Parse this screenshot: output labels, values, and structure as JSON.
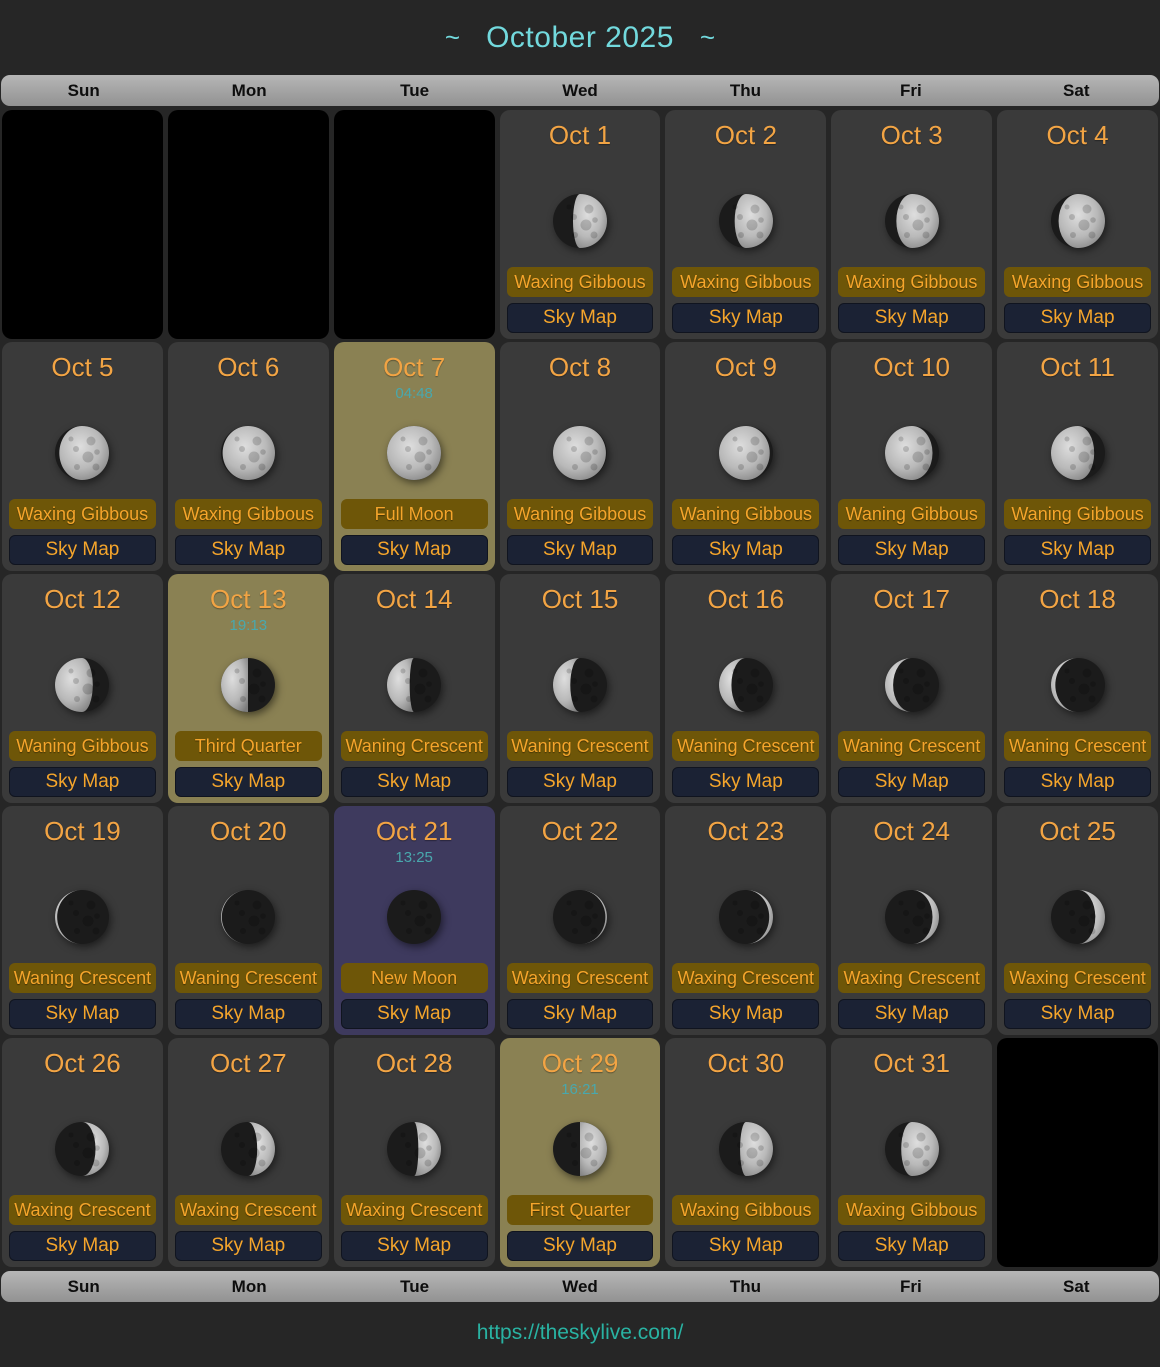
{
  "title": {
    "tilde": "~",
    "month": "October 2025"
  },
  "weekdays": [
    "Sun",
    "Mon",
    "Tue",
    "Wed",
    "Thu",
    "Fri",
    "Sat"
  ],
  "sky_map_label": "Sky Map",
  "footer_url": "https://theskylive.com/",
  "colors": {
    "page_bg": "#262626",
    "cell_bg": "#3a3a3a",
    "empty_cell_bg": "#000000",
    "full_quarter_highlight": "#8a8153",
    "new_moon_highlight": "#3e3a5e",
    "date_orange": "#f2a444",
    "button_orange_text": "#f5a52b",
    "phase_button_bg": "#6e5608",
    "skymap_button_bg": "#1b2234",
    "time_teal": "#49a8ad",
    "title_teal": "#72d9dd",
    "url_teal": "#29b2a2",
    "weekday_bar_gray": "#a8a8a8"
  },
  "cells": [
    {
      "empty": true
    },
    {
      "empty": true
    },
    {
      "empty": true
    },
    {
      "date": "Oct 1",
      "time": "",
      "phase": "Waxing Gibbous",
      "highlight": "",
      "moon": {
        "illum": 0.63,
        "lit": "right"
      }
    },
    {
      "date": "Oct 2",
      "time": "",
      "phase": "Waxing Gibbous",
      "highlight": "",
      "moon": {
        "illum": 0.71,
        "lit": "right"
      }
    },
    {
      "date": "Oct 3",
      "time": "",
      "phase": "Waxing Gibbous",
      "highlight": "",
      "moon": {
        "illum": 0.79,
        "lit": "right"
      }
    },
    {
      "date": "Oct 4",
      "time": "",
      "phase": "Waxing Gibbous",
      "highlight": "",
      "moon": {
        "illum": 0.86,
        "lit": "right"
      }
    },
    {
      "date": "Oct 5",
      "time": "",
      "phase": "Waxing Gibbous",
      "highlight": "",
      "moon": {
        "illum": 0.92,
        "lit": "right"
      }
    },
    {
      "date": "Oct 6",
      "time": "",
      "phase": "Waxing Gibbous",
      "highlight": "",
      "moon": {
        "illum": 0.97,
        "lit": "right"
      }
    },
    {
      "date": "Oct 7",
      "time": "04:48",
      "phase": "Full Moon",
      "highlight": "olive",
      "moon": {
        "illum": 1.0,
        "lit": "right"
      }
    },
    {
      "date": "Oct 8",
      "time": "",
      "phase": "Waning Gibbous",
      "highlight": "",
      "moon": {
        "illum": 0.98,
        "lit": "left"
      }
    },
    {
      "date": "Oct 9",
      "time": "",
      "phase": "Waning Gibbous",
      "highlight": "",
      "moon": {
        "illum": 0.94,
        "lit": "left"
      }
    },
    {
      "date": "Oct 10",
      "time": "",
      "phase": "Waning Gibbous",
      "highlight": "",
      "moon": {
        "illum": 0.88,
        "lit": "left"
      }
    },
    {
      "date": "Oct 11",
      "time": "",
      "phase": "Waning Gibbous",
      "highlight": "",
      "moon": {
        "illum": 0.8,
        "lit": "left"
      }
    },
    {
      "date": "Oct 12",
      "time": "",
      "phase": "Waning Gibbous",
      "highlight": "",
      "moon": {
        "illum": 0.7,
        "lit": "left"
      }
    },
    {
      "date": "Oct 13",
      "time": "19:13",
      "phase": "Third Quarter",
      "highlight": "olive",
      "moon": {
        "illum": 0.5,
        "lit": "left"
      }
    },
    {
      "date": "Oct 14",
      "time": "",
      "phase": "Waning Crescent",
      "highlight": "",
      "moon": {
        "illum": 0.42,
        "lit": "left"
      }
    },
    {
      "date": "Oct 15",
      "time": "",
      "phase": "Waning Crescent",
      "highlight": "",
      "moon": {
        "illum": 0.32,
        "lit": "left"
      }
    },
    {
      "date": "Oct 16",
      "time": "",
      "phase": "Waning Crescent",
      "highlight": "",
      "moon": {
        "illum": 0.23,
        "lit": "left"
      }
    },
    {
      "date": "Oct 17",
      "time": "",
      "phase": "Waning Crescent",
      "highlight": "",
      "moon": {
        "illum": 0.15,
        "lit": "left"
      }
    },
    {
      "date": "Oct 18",
      "time": "",
      "phase": "Waning Crescent",
      "highlight": "",
      "moon": {
        "illum": 0.08,
        "lit": "left"
      }
    },
    {
      "date": "Oct 19",
      "time": "",
      "phase": "Waning Crescent",
      "highlight": "",
      "moon": {
        "illum": 0.04,
        "lit": "left"
      }
    },
    {
      "date": "Oct 20",
      "time": "",
      "phase": "Waning Crescent",
      "highlight": "",
      "moon": {
        "illum": 0.015,
        "lit": "left"
      }
    },
    {
      "date": "Oct 21",
      "time": "13:25",
      "phase": "New Moon",
      "highlight": "indigo",
      "moon": {
        "illum": 0.0,
        "lit": "right"
      }
    },
    {
      "date": "Oct 22",
      "time": "",
      "phase": "Waxing Crescent",
      "highlight": "",
      "moon": {
        "illum": 0.03,
        "lit": "right"
      }
    },
    {
      "date": "Oct 23",
      "time": "",
      "phase": "Waxing Crescent",
      "highlight": "",
      "moon": {
        "illum": 0.07,
        "lit": "right"
      }
    },
    {
      "date": "Oct 24",
      "time": "",
      "phase": "Waxing Crescent",
      "highlight": "",
      "moon": {
        "illum": 0.12,
        "lit": "right"
      }
    },
    {
      "date": "Oct 25",
      "time": "",
      "phase": "Waxing Crescent",
      "highlight": "",
      "moon": {
        "illum": 0.18,
        "lit": "right"
      }
    },
    {
      "date": "Oct 26",
      "time": "",
      "phase": "Waxing Crescent",
      "highlight": "",
      "moon": {
        "illum": 0.25,
        "lit": "right"
      }
    },
    {
      "date": "Oct 27",
      "time": "",
      "phase": "Waxing Crescent",
      "highlight": "",
      "moon": {
        "illum": 0.33,
        "lit": "right"
      }
    },
    {
      "date": "Oct 28",
      "time": "",
      "phase": "Waxing Crescent",
      "highlight": "",
      "moon": {
        "illum": 0.42,
        "lit": "right"
      }
    },
    {
      "date": "Oct 29",
      "time": "16:21",
      "phase": "First Quarter",
      "highlight": "olive",
      "moon": {
        "illum": 0.5,
        "lit": "right"
      }
    },
    {
      "date": "Oct 30",
      "time": "",
      "phase": "Waxing Gibbous",
      "highlight": "",
      "moon": {
        "illum": 0.61,
        "lit": "right"
      }
    },
    {
      "date": "Oct 31",
      "time": "",
      "phase": "Waxing Gibbous",
      "highlight": "",
      "moon": {
        "illum": 0.7,
        "lit": "right"
      }
    },
    {
      "empty": true
    }
  ]
}
